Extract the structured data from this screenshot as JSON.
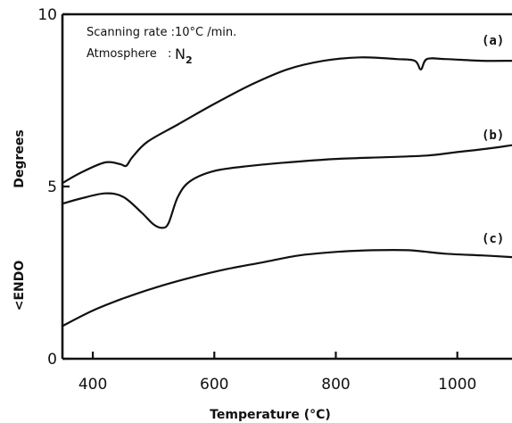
{
  "chart_data": {
    "type": "line",
    "xlabel": "Temperature (°C)",
    "ylabel_primary": "Degrees",
    "ylabel_secondary": "<ENDO",
    "xlim": [
      350,
      1090
    ],
    "ylim": [
      0,
      10
    ],
    "x_ticks": [
      400,
      600,
      800,
      1000
    ],
    "y_ticks": [
      0,
      5,
      10
    ],
    "grid": false,
    "annotations": {
      "rate": "Scanning rate :10°C /min.",
      "atmosphere_label": "Atmosphere",
      "atmosphere_sep": ":",
      "atmosphere_value": "N",
      "atmosphere_sub": "2"
    },
    "series": [
      {
        "name": "(a)",
        "x": [
          350,
          380,
          420,
          445,
          455,
          465,
          490,
          540,
          600,
          660,
          720,
          780,
          840,
          900,
          930,
          940,
          950,
          980,
          1040,
          1090
        ],
        "y": [
          5.1,
          5.4,
          5.7,
          5.65,
          5.6,
          5.85,
          6.3,
          6.8,
          7.4,
          7.95,
          8.4,
          8.65,
          8.75,
          8.7,
          8.65,
          8.4,
          8.7,
          8.7,
          8.65,
          8.65
        ]
      },
      {
        "name": "(b)",
        "x": [
          350,
          380,
          420,
          450,
          480,
          500,
          515,
          525,
          540,
          560,
          600,
          660,
          720,
          800,
          880,
          950,
          1000,
          1050,
          1090
        ],
        "y": [
          4.5,
          4.65,
          4.8,
          4.7,
          4.25,
          3.9,
          3.8,
          3.95,
          4.7,
          5.15,
          5.45,
          5.6,
          5.7,
          5.8,
          5.85,
          5.9,
          6.0,
          6.1,
          6.2
        ]
      },
      {
        "name": "(c)",
        "x": [
          350,
          400,
          450,
          500,
          560,
          620,
          680,
          740,
          800,
          860,
          920,
          980,
          1040,
          1090
        ],
        "y": [
          0.95,
          1.4,
          1.75,
          2.05,
          2.35,
          2.6,
          2.8,
          3.0,
          3.1,
          3.15,
          3.15,
          3.05,
          3.0,
          2.95
        ]
      }
    ]
  }
}
